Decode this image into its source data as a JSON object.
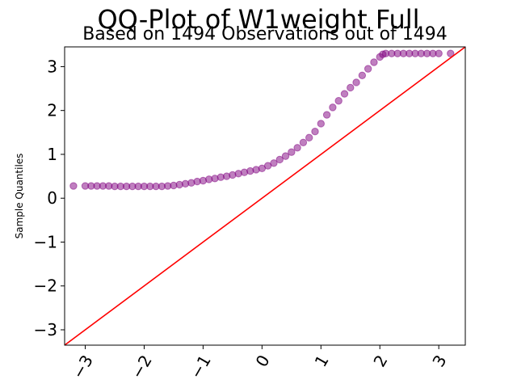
{
  "chart_data": {
    "type": "scatter",
    "title": "QQ-Plot of W1weight Full",
    "subtitle": "Based on 1494 Observations out of 1494",
    "xlabel": "",
    "ylabel": "Sample Quantiles",
    "xlim": [
      -3.35,
      3.45
    ],
    "ylim": [
      -3.35,
      3.45
    ],
    "xticks": [
      -3,
      -2,
      -1,
      0,
      1,
      2,
      3
    ],
    "yticks": [
      -3,
      -2,
      -1,
      0,
      1,
      2,
      3
    ],
    "xtick_labels": [
      "−3",
      "−2",
      "−1",
      "0",
      "1",
      "2",
      "3"
    ],
    "ytick_labels": [
      "−3",
      "−2",
      "−1",
      "0",
      "1",
      "2",
      "3"
    ],
    "grid": false,
    "legend": "none",
    "colors": {
      "points": "#800080",
      "reference_line": "#ff0000"
    },
    "reference_line": {
      "name": "",
      "x": [
        -3.35,
        3.45
      ],
      "y": [
        -3.35,
        3.45
      ]
    },
    "series": [
      {
        "name": "",
        "x": [
          -3.2,
          -3.0,
          -2.9,
          -2.8,
          -2.7,
          -2.6,
          -2.5,
          -2.4,
          -2.3,
          -2.2,
          -2.1,
          -2.0,
          -1.9,
          -1.8,
          -1.7,
          -1.6,
          -1.5,
          -1.4,
          -1.3,
          -1.2,
          -1.1,
          -1.0,
          -0.9,
          -0.8,
          -0.7,
          -0.6,
          -0.5,
          -0.4,
          -0.3,
          -0.2,
          -0.1,
          0.0,
          0.1,
          0.2,
          0.3,
          0.4,
          0.5,
          0.6,
          0.7,
          0.8,
          0.9,
          1.0,
          1.1,
          1.2,
          1.3,
          1.4,
          1.5,
          1.6,
          1.7,
          1.8,
          1.9,
          2.0,
          2.05,
          2.1,
          2.2,
          2.3,
          2.4,
          2.5,
          2.6,
          2.7,
          2.8,
          2.9,
          3.0,
          3.2
        ],
        "y": [
          0.28,
          0.28,
          0.28,
          0.28,
          0.28,
          0.28,
          0.27,
          0.27,
          0.27,
          0.27,
          0.27,
          0.27,
          0.27,
          0.27,
          0.27,
          0.28,
          0.29,
          0.31,
          0.33,
          0.35,
          0.38,
          0.4,
          0.43,
          0.45,
          0.48,
          0.5,
          0.53,
          0.56,
          0.59,
          0.62,
          0.65,
          0.68,
          0.74,
          0.8,
          0.88,
          0.96,
          1.05,
          1.15,
          1.27,
          1.38,
          1.52,
          1.7,
          1.9,
          2.07,
          2.22,
          2.38,
          2.52,
          2.64,
          2.8,
          2.95,
          3.1,
          3.22,
          3.28,
          3.3,
          3.3,
          3.3,
          3.3,
          3.3,
          3.3,
          3.3,
          3.3,
          3.3,
          3.3,
          3.3
        ]
      }
    ]
  }
}
